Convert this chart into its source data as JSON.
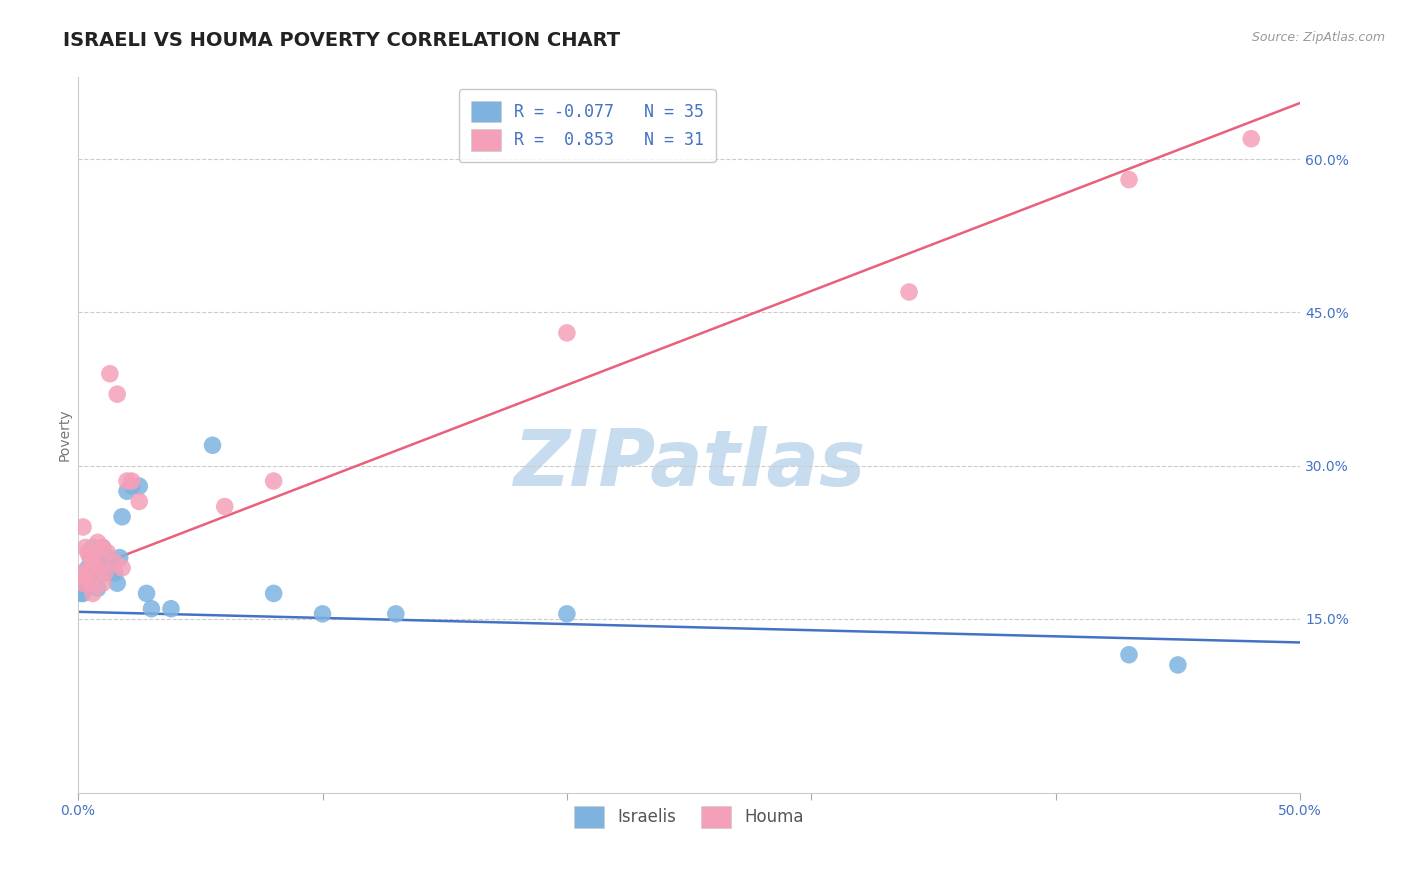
{
  "title": "ISRAELI VS HOUMA POVERTY CORRELATION CHART",
  "source": "Source: ZipAtlas.com",
  "ylabel": "Poverty",
  "xlim": [
    0.0,
    0.5
  ],
  "ylim": [
    -0.02,
    0.68
  ],
  "ytick_right_vals": [
    0.15,
    0.3,
    0.45,
    0.6
  ],
  "ytick_right_labels": [
    "15.0%",
    "30.0%",
    "45.0%",
    "60.0%"
  ],
  "legend_line1": "R = -0.077   N = 35",
  "legend_line2": "R =  0.853   N = 31",
  "blue_color": "#7EB3E0",
  "pink_color": "#F4A0B8",
  "blue_line_color": "#4472C4",
  "pink_line_color": "#E8607A",
  "watermark": "ZIPatlas",
  "watermark_color": "#C8DCEF",
  "israelis_x": [
    0.001,
    0.002,
    0.003,
    0.003,
    0.004,
    0.004,
    0.005,
    0.005,
    0.006,
    0.006,
    0.007,
    0.008,
    0.008,
    0.009,
    0.01,
    0.011,
    0.012,
    0.013,
    0.015,
    0.016,
    0.017,
    0.018,
    0.02,
    0.022,
    0.025,
    0.028,
    0.03,
    0.038,
    0.055,
    0.08,
    0.1,
    0.13,
    0.2,
    0.43,
    0.45
  ],
  "israelis_y": [
    0.175,
    0.175,
    0.18,
    0.19,
    0.19,
    0.2,
    0.21,
    0.195,
    0.2,
    0.22,
    0.195,
    0.21,
    0.18,
    0.215,
    0.22,
    0.195,
    0.21,
    0.2,
    0.195,
    0.185,
    0.21,
    0.25,
    0.275,
    0.28,
    0.28,
    0.175,
    0.16,
    0.16,
    0.32,
    0.175,
    0.155,
    0.155,
    0.155,
    0.115,
    0.105
  ],
  "houma_x": [
    0.001,
    0.002,
    0.002,
    0.003,
    0.003,
    0.004,
    0.004,
    0.005,
    0.005,
    0.006,
    0.006,
    0.007,
    0.008,
    0.009,
    0.01,
    0.01,
    0.011,
    0.012,
    0.013,
    0.015,
    0.016,
    0.018,
    0.02,
    0.022,
    0.025,
    0.06,
    0.08,
    0.2,
    0.34,
    0.43,
    0.48
  ],
  "houma_y": [
    0.195,
    0.24,
    0.185,
    0.22,
    0.19,
    0.215,
    0.195,
    0.21,
    0.185,
    0.205,
    0.175,
    0.215,
    0.225,
    0.2,
    0.22,
    0.185,
    0.195,
    0.215,
    0.39,
    0.205,
    0.37,
    0.2,
    0.285,
    0.285,
    0.265,
    0.26,
    0.285,
    0.43,
    0.47,
    0.58,
    0.62
  ],
  "grid_color": "#CCCCCC",
  "bg_color": "#FFFFFF",
  "title_fontsize": 14,
  "axis_label_fontsize": 10,
  "tick_fontsize": 10,
  "legend_fontsize": 12
}
